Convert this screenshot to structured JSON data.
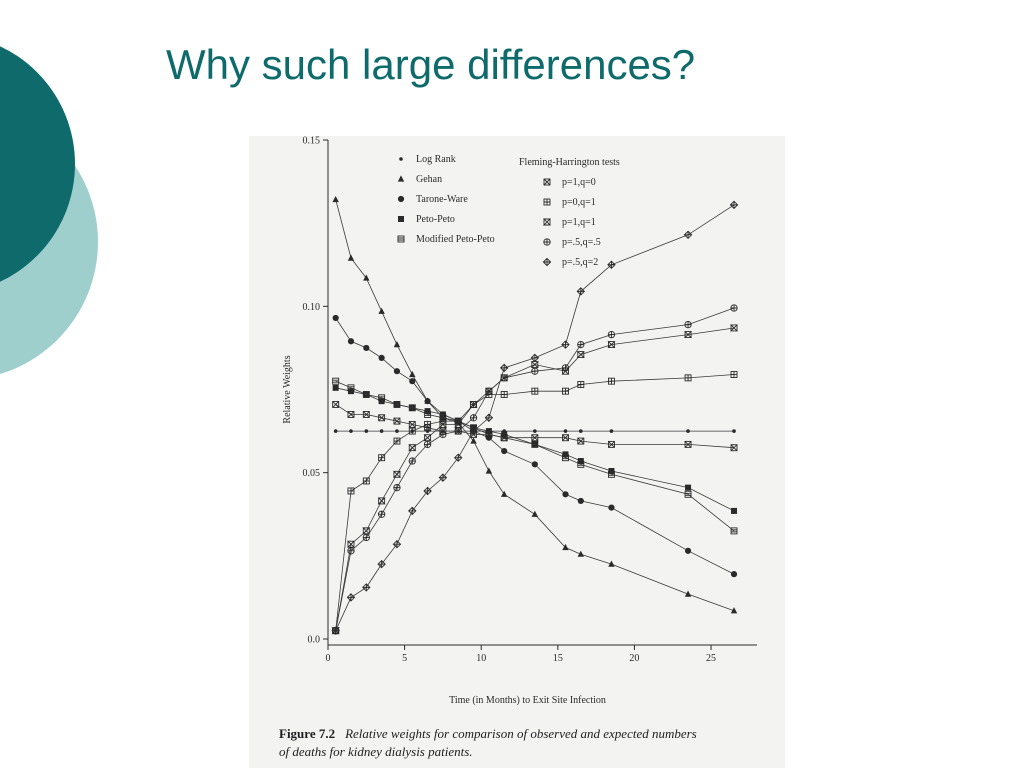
{
  "slide": {
    "title": "Why such large differences?",
    "accent_color": "#0f6b6b",
    "accent_light_color": "#9fcfcd"
  },
  "figure": {
    "label": "Figure 7.2",
    "caption_line1": "Relative weights for comparison of observed and expected numbers",
    "caption_line2": "of deaths for kidney dialysis patients."
  },
  "chart_data": {
    "type": "line",
    "xlabel": "Time (in Months) to Exit Site Infection",
    "ylabel": "Relative Weights",
    "xlim": [
      0,
      28
    ],
    "ylim": [
      0,
      0.15
    ],
    "x_ticks": [
      0,
      5,
      10,
      15,
      20,
      25
    ],
    "x_tick_labels": [
      "0",
      "5",
      "10",
      "15",
      "20",
      "25"
    ],
    "y_ticks": [
      0,
      0.05,
      0.1,
      0.15
    ],
    "y_tick_labels": [
      "0.0",
      "0.05",
      "0.10",
      "0.15"
    ],
    "legend_left_header": "",
    "legend_right_header": "Fleming-Harrington tests",
    "grid": false,
    "x": [
      0.5,
      1.5,
      2.5,
      3.5,
      4.5,
      5.5,
      6.5,
      7.5,
      8.5,
      9.5,
      10.5,
      11.5,
      13.5,
      15.5,
      16.5,
      18.5,
      23.5,
      26.5
    ],
    "series": [
      {
        "name": "Log Rank",
        "marker": "dot",
        "values": [
          0.0625,
          0.0625,
          0.0625,
          0.0625,
          0.0625,
          0.0625,
          0.0625,
          0.0625,
          0.0625,
          0.0625,
          0.0625,
          0.0625,
          0.0625,
          0.0625,
          0.0625,
          0.0625,
          0.0625,
          0.0625
        ]
      },
      {
        "name": "Gehan",
        "marker": "triangle",
        "values": [
          0.1321,
          0.1145,
          0.1085,
          0.0985,
          0.0885,
          0.0795,
          0.0715,
          0.0665,
          0.065,
          0.0595,
          0.0505,
          0.0435,
          0.0375,
          0.0275,
          0.0255,
          0.0225,
          0.0135,
          0.0085
        ]
      },
      {
        "name": "Tarone-Ware",
        "marker": "circle",
        "values": [
          0.0965,
          0.0895,
          0.0875,
          0.0845,
          0.0805,
          0.0775,
          0.0715,
          0.0675,
          0.0655,
          0.0625,
          0.0605,
          0.0565,
          0.0525,
          0.0435,
          0.0415,
          0.0395,
          0.0265,
          0.0195
        ]
      },
      {
        "name": "Peto-Peto",
        "marker": "square",
        "values": [
          0.0755,
          0.0745,
          0.0735,
          0.0715,
          0.0705,
          0.0695,
          0.0685,
          0.0675,
          0.0655,
          0.0635,
          0.0625,
          0.0615,
          0.0585,
          0.0555,
          0.0535,
          0.0505,
          0.0455,
          0.0385
        ]
      },
      {
        "name": "Modified Peto-Peto",
        "marker": "square-hatch",
        "values": [
          0.0775,
          0.0755,
          0.0735,
          0.0725,
          0.0705,
          0.0695,
          0.0675,
          0.0665,
          0.0655,
          0.0635,
          0.0615,
          0.0605,
          0.0585,
          0.0545,
          0.0525,
          0.0495,
          0.0435,
          0.0325
        ]
      },
      {
        "name": "p=1,q=0",
        "marker": "box-x",
        "values": [
          0.0705,
          0.0675,
          0.0675,
          0.0665,
          0.0655,
          0.0645,
          0.0635,
          0.0625,
          0.0625,
          0.0615,
          0.0615,
          0.0605,
          0.0605,
          0.0605,
          0.0595,
          0.0585,
          0.0585,
          0.0575
        ]
      },
      {
        "name": "p=0,q=1",
        "marker": "box-plus",
        "values": [
          0.0025,
          0.0445,
          0.0475,
          0.0545,
          0.0595,
          0.0625,
          0.0645,
          0.0655,
          0.0655,
          0.0705,
          0.0735,
          0.0735,
          0.0745,
          0.0745,
          0.0765,
          0.0775,
          0.0785,
          0.0795
        ]
      },
      {
        "name": "p=1,q=1",
        "marker": "box-hourglass",
        "values": [
          0.0025,
          0.0285,
          0.0325,
          0.0415,
          0.0495,
          0.0575,
          0.0605,
          0.0645,
          0.0645,
          0.0705,
          0.0745,
          0.0785,
          0.0825,
          0.0805,
          0.0855,
          0.0885,
          0.0915,
          0.0935
        ]
      },
      {
        "name": "p=.5,q=.5",
        "marker": "circle-plus",
        "values": [
          0.0025,
          0.0265,
          0.0305,
          0.0375,
          0.0455,
          0.0535,
          0.0585,
          0.0615,
          0.0625,
          0.0665,
          0.0745,
          0.0785,
          0.0805,
          0.0815,
          0.0885,
          0.0915,
          0.0945,
          0.0995
        ]
      },
      {
        "name": "p=.5,q=2",
        "marker": "diamond-plus",
        "values": [
          0.0025,
          0.0125,
          0.0155,
          0.0225,
          0.0285,
          0.0385,
          0.0445,
          0.0485,
          0.0545,
          0.0625,
          0.0665,
          0.0815,
          0.0845,
          0.0885,
          0.1045,
          0.1125,
          0.1215,
          0.1305
        ]
      }
    ]
  }
}
